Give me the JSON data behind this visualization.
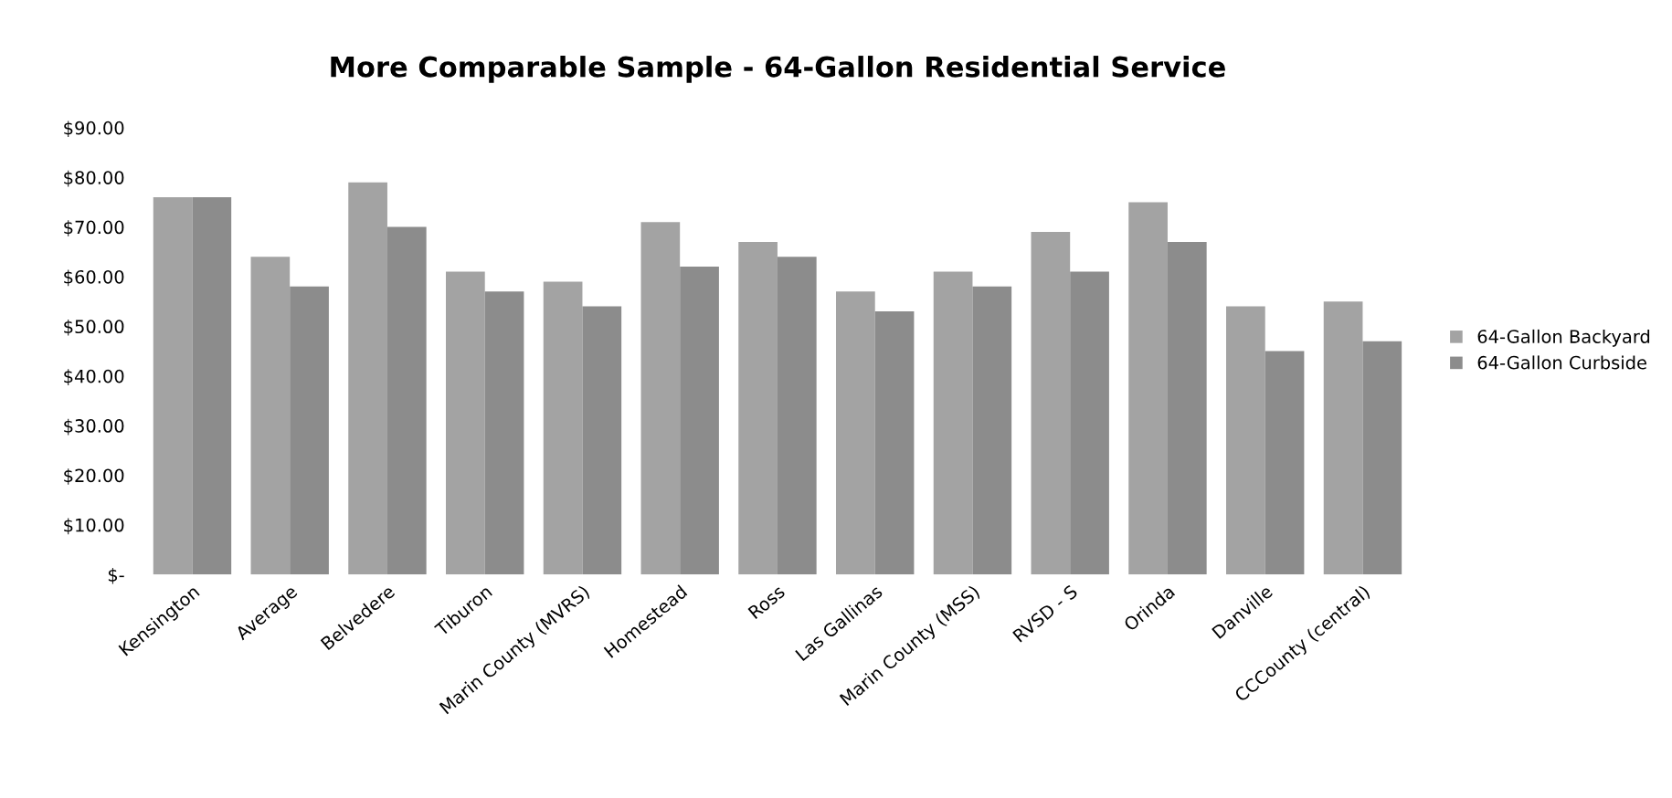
{
  "chart_data": {
    "type": "bar",
    "title": "More Comparable Sample - 64-Gallon Residential Service",
    "categories": [
      "Kensington",
      "Average",
      "Belvedere",
      "Tiburon",
      "Marin County (MVRS)",
      "Homestead",
      "Ross",
      "Las Gallinas",
      "Marin County (MSS)",
      "RVSD - S",
      "Orinda",
      "Danville",
      "CCCounty (central)"
    ],
    "series": [
      {
        "name": "64-Gallon Backyard",
        "color": "#a3a3a3",
        "values": [
          76,
          64,
          79,
          61,
          59,
          71,
          67,
          57,
          61,
          69,
          75,
          54,
          55
        ]
      },
      {
        "name": "64-Gallon Curbside",
        "color": "#8c8c8c",
        "values": [
          76,
          58,
          70,
          57,
          54,
          62,
          64,
          53,
          58,
          61,
          67,
          45,
          47
        ]
      }
    ],
    "ylim": [
      0,
      90
    ],
    "yticks": [
      {
        "value": 0,
        "label": "$-"
      },
      {
        "value": 10,
        "label": "$10.00"
      },
      {
        "value": 20,
        "label": "$20.00"
      },
      {
        "value": 30,
        "label": "$30.00"
      },
      {
        "value": 40,
        "label": "$40.00"
      },
      {
        "value": 50,
        "label": "$50.00"
      },
      {
        "value": 60,
        "label": "$60.00"
      },
      {
        "value": 70,
        "label": "$70.00"
      },
      {
        "value": 80,
        "label": "$80.00"
      },
      {
        "value": 90,
        "label": "$90.00"
      }
    ],
    "grid": false,
    "legend": "right"
  }
}
